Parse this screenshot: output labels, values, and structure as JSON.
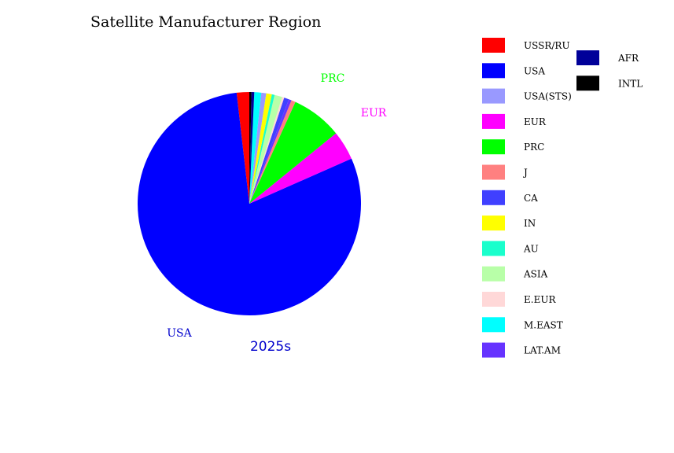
{
  "chart_data": {
    "type": "pie",
    "title": "Satellite Manufacturer Region",
    "subtitle": "2025s",
    "start_angle": -90,
    "direction": "counterclockwise",
    "slices": [
      {
        "label": "USSR/RU",
        "value": 1.8,
        "color": "#ff0000"
      },
      {
        "label": "USA",
        "value": 79.0,
        "color": "#0000ff",
        "callout": "USA"
      },
      {
        "label": "EUR",
        "value": 4.2,
        "color": "#ff00ff",
        "callout": "EUR"
      },
      {
        "label": "PRC",
        "value": 7.3,
        "color": "#00ff00",
        "callout": "PRC"
      },
      {
        "label": "J",
        "value": 0.6,
        "color": "#ff8080"
      },
      {
        "label": "LAT.AM",
        "value": 0.4,
        "color": "#6633ff"
      },
      {
        "label": "CA",
        "value": 0.7,
        "color": "#4040ff"
      },
      {
        "label": "E.EUR",
        "value": 0.3,
        "color": "#ffd8d8"
      },
      {
        "label": "ASIA",
        "value": 1.1,
        "color": "#b8ffa8"
      },
      {
        "label": "AU",
        "value": 0.4,
        "color": "#1affcc"
      },
      {
        "label": "IN",
        "value": 0.8,
        "color": "#ffff00"
      },
      {
        "label": "USA(STS)",
        "value": 0.7,
        "color": "#9999ff"
      },
      {
        "label": "M.EAST",
        "value": 1.0,
        "color": "#00ffff"
      },
      {
        "label": "AFR",
        "value": 0.4,
        "color": "#000099"
      },
      {
        "label": "INTL",
        "value": 0.3,
        "color": "#000000"
      }
    ],
    "legend": {
      "placement": "right",
      "columns": [
        [
          "USSR/RU",
          "USA",
          "USA(STS)",
          "EUR",
          "PRC",
          "J",
          "CA",
          "IN",
          "AU",
          "ASIA",
          "E.EUR",
          "M.EAST",
          "LAT.AM"
        ],
        [
          "AFR",
          "INTL"
        ]
      ]
    }
  }
}
